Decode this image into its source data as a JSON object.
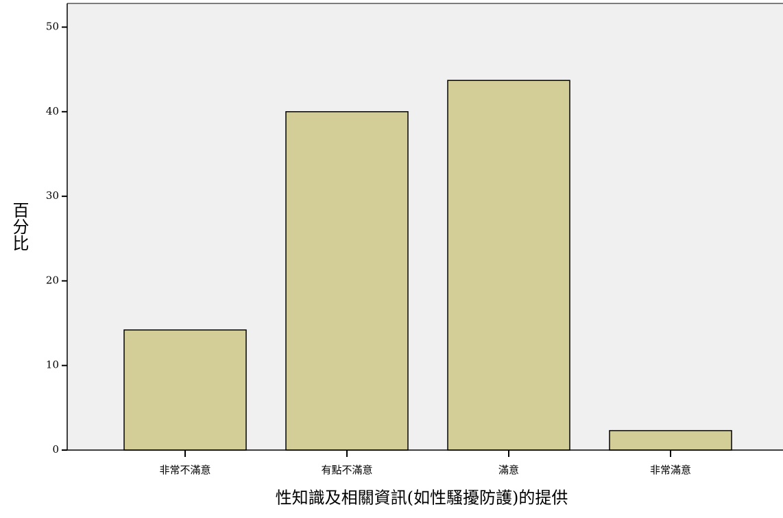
{
  "chart_data": {
    "type": "bar",
    "x_label": "性知識及相關資訊(如性騷擾防護)的提供",
    "y_label": "百分比",
    "categories": [
      "非常不滿意",
      "有點不滿意",
      "滿意",
      "非常滿意"
    ],
    "values": [
      14.2,
      40.0,
      43.7,
      2.3
    ],
    "color": "#d3ce97",
    "ylim": [
      0,
      52.8
    ],
    "yticks": [
      0,
      10,
      20,
      30,
      40,
      50
    ],
    "grid": false
  }
}
